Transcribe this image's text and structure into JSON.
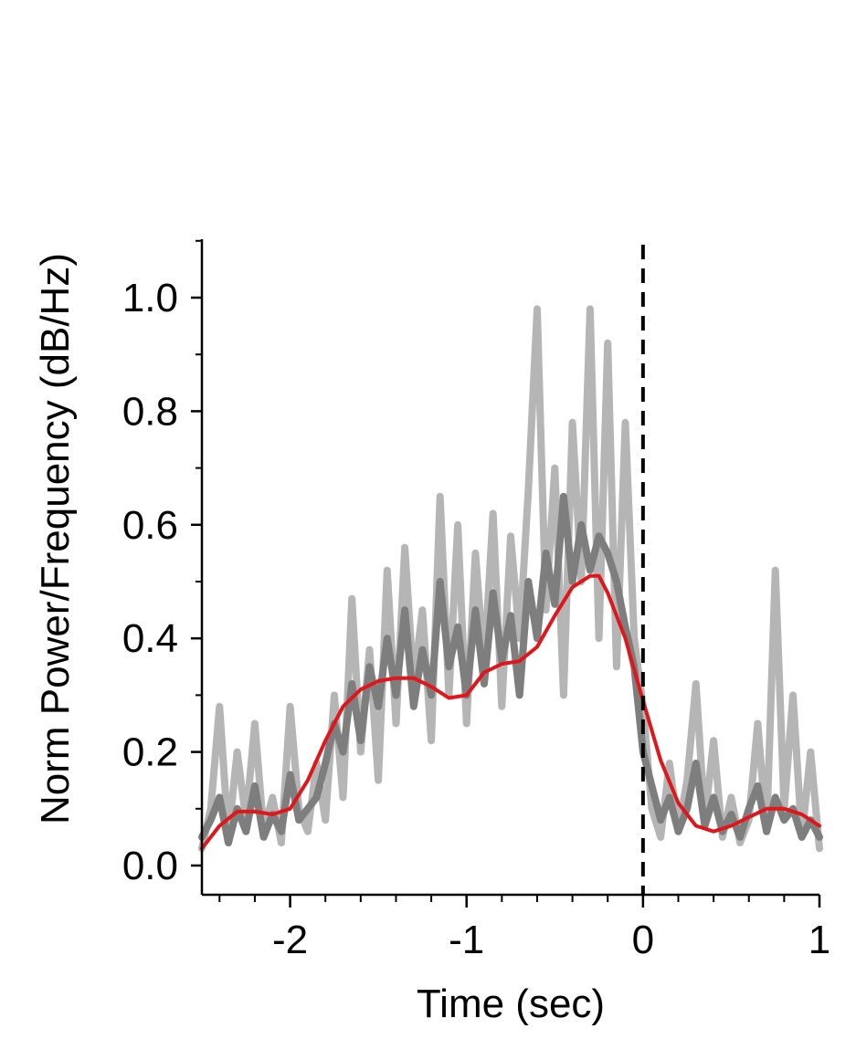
{
  "chart_data": {
    "type": "line",
    "title": "",
    "xlabel": "Time (sec)",
    "ylabel": "Norm Power/Frequency (dB/Hz)",
    "xlim": [
      -2.5,
      1.0
    ],
    "ylim": [
      -0.05,
      1.1
    ],
    "x_ticks": [
      -2,
      -1,
      0,
      1
    ],
    "x_tick_labels": [
      "-2",
      "-1",
      "0",
      "1"
    ],
    "y_ticks": [
      0.0,
      0.2,
      0.4,
      0.6,
      0.8,
      1.0
    ],
    "y_tick_labels": [
      "0.0",
      "0.2",
      "0.4",
      "0.6",
      "0.8",
      "1.0"
    ],
    "grid": false,
    "legend": "none",
    "event_marker": {
      "x": 0,
      "style": "dashed",
      "color": "#000000"
    },
    "series": [
      {
        "role": "trial-light",
        "color": "#b5b5b5",
        "x": [
          -2.5,
          -2.45,
          -2.4,
          -2.35,
          -2.3,
          -2.25,
          -2.2,
          -2.15,
          -2.1,
          -2.05,
          -2.0,
          -1.95,
          -1.9,
          -1.85,
          -1.8,
          -1.75,
          -1.7,
          -1.65,
          -1.6,
          -1.55,
          -1.5,
          -1.45,
          -1.4,
          -1.35,
          -1.3,
          -1.25,
          -1.2,
          -1.15,
          -1.1,
          -1.05,
          -1.0,
          -0.95,
          -0.9,
          -0.85,
          -0.8,
          -0.75,
          -0.7,
          -0.65,
          -0.6,
          -0.55,
          -0.5,
          -0.45,
          -0.4,
          -0.35,
          -0.3,
          -0.25,
          -0.2,
          -0.15,
          -0.1,
          -0.05,
          0.0,
          0.05,
          0.1,
          0.15,
          0.2,
          0.25,
          0.3,
          0.35,
          0.4,
          0.45,
          0.5,
          0.55,
          0.6,
          0.65,
          0.7,
          0.75,
          0.8,
          0.85,
          0.9,
          0.95,
          1.0
        ],
        "y": [
          0.03,
          0.1,
          0.28,
          0.05,
          0.2,
          0.08,
          0.25,
          0.06,
          0.12,
          0.04,
          0.28,
          0.1,
          0.06,
          0.18,
          0.08,
          0.3,
          0.12,
          0.47,
          0.2,
          0.38,
          0.15,
          0.52,
          0.25,
          0.56,
          0.32,
          0.45,
          0.22,
          0.65,
          0.3,
          0.6,
          0.25,
          0.55,
          0.35,
          0.62,
          0.28,
          0.58,
          0.4,
          0.66,
          0.98,
          0.45,
          0.7,
          0.3,
          0.78,
          0.5,
          0.98,
          0.4,
          0.92,
          0.35,
          0.78,
          0.4,
          0.28,
          0.1,
          0.05,
          0.18,
          0.06,
          0.15,
          0.32,
          0.08,
          0.22,
          0.05,
          0.12,
          0.04,
          0.08,
          0.25,
          0.06,
          0.52,
          0.1,
          0.3,
          0.05,
          0.2,
          0.03
        ]
      },
      {
        "role": "trial-dark",
        "color": "#7e7e7e",
        "x": [
          -2.5,
          -2.45,
          -2.4,
          -2.35,
          -2.3,
          -2.25,
          -2.2,
          -2.15,
          -2.1,
          -2.05,
          -2.0,
          -1.95,
          -1.9,
          -1.85,
          -1.8,
          -1.75,
          -1.7,
          -1.65,
          -1.6,
          -1.55,
          -1.5,
          -1.45,
          -1.4,
          -1.35,
          -1.3,
          -1.25,
          -1.2,
          -1.15,
          -1.1,
          -1.05,
          -1.0,
          -0.95,
          -0.9,
          -0.85,
          -0.8,
          -0.75,
          -0.7,
          -0.65,
          -0.6,
          -0.55,
          -0.5,
          -0.45,
          -0.4,
          -0.35,
          -0.3,
          -0.25,
          -0.2,
          -0.15,
          -0.1,
          -0.05,
          0.0,
          0.05,
          0.1,
          0.15,
          0.2,
          0.25,
          0.3,
          0.35,
          0.4,
          0.45,
          0.5,
          0.55,
          0.6,
          0.65,
          0.7,
          0.75,
          0.8,
          0.85,
          0.9,
          0.95,
          1.0
        ],
        "y": [
          0.05,
          0.08,
          0.12,
          0.04,
          0.1,
          0.06,
          0.14,
          0.05,
          0.09,
          0.06,
          0.16,
          0.08,
          0.1,
          0.12,
          0.18,
          0.25,
          0.2,
          0.32,
          0.22,
          0.35,
          0.28,
          0.4,
          0.3,
          0.45,
          0.28,
          0.38,
          0.3,
          0.5,
          0.35,
          0.42,
          0.3,
          0.45,
          0.32,
          0.48,
          0.36,
          0.44,
          0.3,
          0.5,
          0.4,
          0.55,
          0.46,
          0.65,
          0.5,
          0.6,
          0.52,
          0.58,
          0.55,
          0.5,
          0.42,
          0.35,
          0.2,
          0.14,
          0.08,
          0.12,
          0.06,
          0.1,
          0.18,
          0.07,
          0.12,
          0.06,
          0.09,
          0.05,
          0.1,
          0.14,
          0.06,
          0.12,
          0.08,
          0.1,
          0.05,
          0.08,
          0.05
        ]
      },
      {
        "role": "mean",
        "color": "#e0161b",
        "x": [
          -2.5,
          -2.4,
          -2.3,
          -2.2,
          -2.1,
          -2.0,
          -1.9,
          -1.8,
          -1.7,
          -1.6,
          -1.5,
          -1.4,
          -1.3,
          -1.2,
          -1.1,
          -1.0,
          -0.9,
          -0.8,
          -0.7,
          -0.6,
          -0.5,
          -0.4,
          -0.3,
          -0.25,
          -0.2,
          -0.1,
          0.0,
          0.1,
          0.2,
          0.3,
          0.4,
          0.5,
          0.6,
          0.7,
          0.8,
          0.9,
          1.0
        ],
        "y": [
          0.03,
          0.07,
          0.095,
          0.095,
          0.09,
          0.1,
          0.15,
          0.22,
          0.28,
          0.31,
          0.325,
          0.33,
          0.33,
          0.315,
          0.295,
          0.3,
          0.34,
          0.355,
          0.36,
          0.385,
          0.44,
          0.49,
          0.51,
          0.51,
          0.48,
          0.4,
          0.29,
          0.185,
          0.11,
          0.07,
          0.06,
          0.07,
          0.085,
          0.1,
          0.1,
          0.09,
          0.07
        ]
      }
    ]
  }
}
